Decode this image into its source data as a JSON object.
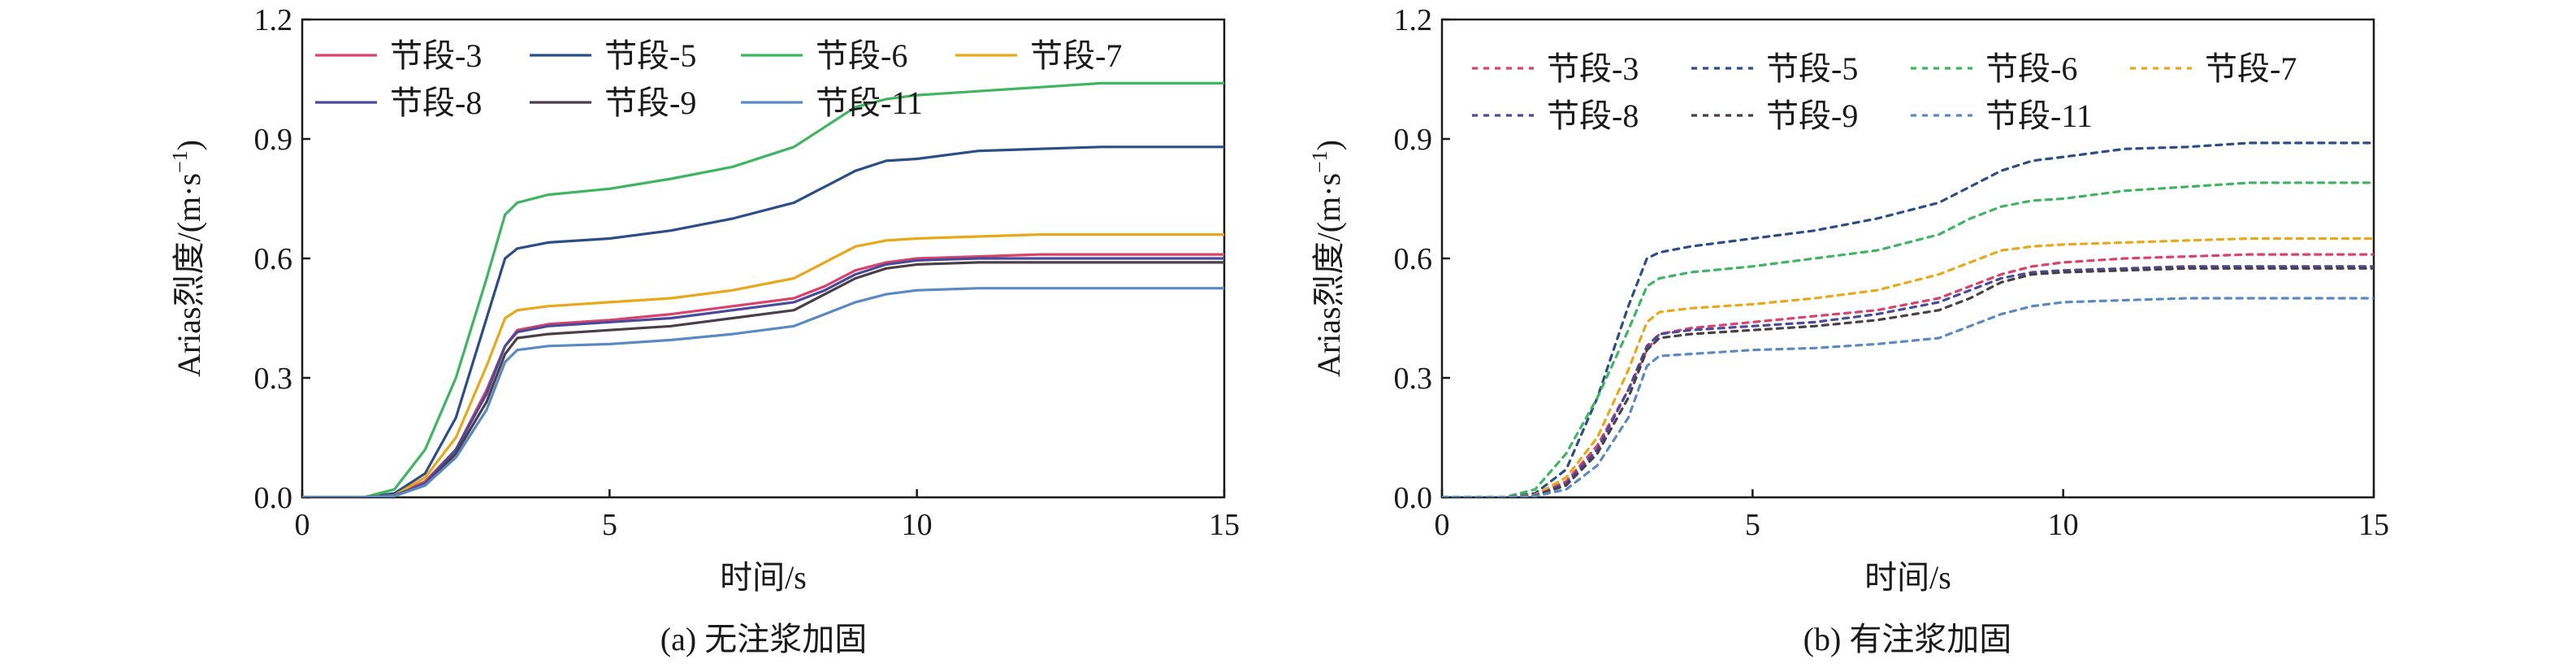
{
  "chart_data": [
    {
      "type": "line",
      "caption": "(a) 无注浆加固",
      "xlabel": "时间/s",
      "ylabel_main": "Arias烈度/(m·s",
      "ylabel_sup": "−1",
      "ylabel_end": ")",
      "xlim": [
        0,
        15
      ],
      "ylim": [
        0,
        1.2
      ],
      "xticks": [
        "0",
        "5",
        "10",
        "15"
      ],
      "yticks": [
        "0.0",
        "0.3",
        "0.6",
        "0.9",
        "1.2"
      ],
      "line_style": "solid",
      "legend_position": "top-left",
      "series": [
        {
          "name": "节段-3",
          "color": "#d9436b",
          "x": [
            0,
            1,
            1.5,
            2,
            2.5,
            3,
            3.3,
            3.5,
            4,
            5,
            6,
            7,
            8,
            8.5,
            9,
            9.5,
            10,
            11,
            12,
            13,
            14,
            15
          ],
          "y": [
            0,
            0,
            0.005,
            0.04,
            0.12,
            0.27,
            0.38,
            0.42,
            0.435,
            0.445,
            0.46,
            0.48,
            0.5,
            0.53,
            0.57,
            0.59,
            0.6,
            0.605,
            0.61,
            0.61,
            0.61,
            0.61
          ]
        },
        {
          "name": "节段-5",
          "color": "#2c4d86",
          "x": [
            0,
            1,
            1.5,
            2,
            2.5,
            3,
            3.3,
            3.5,
            4,
            5,
            6,
            7,
            8,
            8.5,
            9,
            9.5,
            10,
            11,
            12,
            13,
            14,
            15
          ],
          "y": [
            0,
            0,
            0.01,
            0.06,
            0.2,
            0.45,
            0.6,
            0.625,
            0.64,
            0.65,
            0.67,
            0.7,
            0.74,
            0.78,
            0.82,
            0.845,
            0.85,
            0.87,
            0.875,
            0.88,
            0.88,
            0.88
          ]
        },
        {
          "name": "节段-6",
          "color": "#3fb562",
          "x": [
            0,
            1,
            1.5,
            2,
            2.5,
            3,
            3.3,
            3.5,
            4,
            5,
            6,
            7,
            8,
            8.5,
            9,
            9.5,
            10,
            11,
            12,
            13,
            14,
            15
          ],
          "y": [
            0,
            0,
            0.02,
            0.12,
            0.3,
            0.55,
            0.71,
            0.74,
            0.76,
            0.775,
            0.8,
            0.83,
            0.88,
            0.93,
            0.98,
            1.0,
            1.01,
            1.02,
            1.03,
            1.04,
            1.04,
            1.04
          ]
        },
        {
          "name": "节段-7",
          "color": "#e8a819",
          "x": [
            0,
            1,
            1.5,
            2,
            2.5,
            3,
            3.3,
            3.5,
            4,
            5,
            6,
            7,
            8,
            8.5,
            9,
            9.5,
            10,
            11,
            12,
            13,
            14,
            15
          ],
          "y": [
            0,
            0,
            0.005,
            0.05,
            0.15,
            0.33,
            0.45,
            0.47,
            0.48,
            0.49,
            0.5,
            0.52,
            0.55,
            0.59,
            0.63,
            0.645,
            0.65,
            0.655,
            0.66,
            0.66,
            0.66,
            0.66
          ]
        },
        {
          "name": "节段-8",
          "color": "#4a4a9a",
          "x": [
            0,
            1,
            1.5,
            2,
            2.5,
            3,
            3.3,
            3.5,
            4,
            5,
            6,
            7,
            8,
            8.5,
            9,
            9.5,
            10,
            11,
            12,
            13,
            14,
            15
          ],
          "y": [
            0,
            0,
            0.004,
            0.035,
            0.12,
            0.26,
            0.38,
            0.415,
            0.43,
            0.44,
            0.45,
            0.47,
            0.49,
            0.52,
            0.56,
            0.585,
            0.595,
            0.6,
            0.6,
            0.6,
            0.6,
            0.6
          ]
        },
        {
          "name": "节段-9",
          "color": "#4a3f47",
          "x": [
            0,
            1,
            1.5,
            2,
            2.5,
            3,
            3.3,
            3.5,
            4,
            5,
            6,
            7,
            8,
            8.5,
            9,
            9.5,
            10,
            11,
            12,
            13,
            14,
            15
          ],
          "y": [
            0,
            0,
            0.004,
            0.03,
            0.11,
            0.24,
            0.36,
            0.4,
            0.41,
            0.42,
            0.43,
            0.45,
            0.47,
            0.51,
            0.55,
            0.575,
            0.585,
            0.59,
            0.59,
            0.59,
            0.59,
            0.59
          ]
        },
        {
          "name": "节段-11",
          "color": "#5b89c4",
          "x": [
            0,
            1,
            1.5,
            2,
            2.5,
            3,
            3.3,
            3.5,
            4,
            5,
            6,
            7,
            8,
            8.5,
            9,
            9.5,
            10,
            11,
            12,
            13,
            14,
            15
          ],
          "y": [
            0,
            0,
            0.003,
            0.03,
            0.1,
            0.22,
            0.34,
            0.37,
            0.38,
            0.385,
            0.395,
            0.41,
            0.43,
            0.46,
            0.49,
            0.51,
            0.52,
            0.525,
            0.525,
            0.525,
            0.525,
            0.525
          ]
        }
      ]
    },
    {
      "type": "line",
      "caption": "(b) 有注浆加固",
      "xlabel": "时间/s",
      "ylabel_main": "Arias烈度/(m·s",
      "ylabel_sup": "−1",
      "ylabel_end": ")",
      "xlim": [
        0,
        15
      ],
      "ylim": [
        0,
        1.2
      ],
      "xticks": [
        "0",
        "5",
        "10",
        "15"
      ],
      "yticks": [
        "0.0",
        "0.3",
        "0.6",
        "0.9",
        "1.2"
      ],
      "line_style": "dashed",
      "legend_position": "top-left",
      "series": [
        {
          "name": "节段-3",
          "color": "#d9436b",
          "x": [
            0,
            1,
            1.5,
            2,
            2.5,
            3,
            3.3,
            3.5,
            4,
            5,
            6,
            7,
            8,
            8.5,
            9,
            9.5,
            10,
            11,
            12,
            13,
            14,
            15
          ],
          "y": [
            0,
            0,
            0.005,
            0.04,
            0.13,
            0.27,
            0.37,
            0.41,
            0.425,
            0.44,
            0.455,
            0.47,
            0.5,
            0.53,
            0.56,
            0.58,
            0.59,
            0.6,
            0.605,
            0.61,
            0.61,
            0.61
          ]
        },
        {
          "name": "节段-5",
          "color": "#2c4d86",
          "x": [
            0,
            1,
            1.5,
            2,
            2.5,
            3,
            3.3,
            3.5,
            4,
            5,
            6,
            7,
            8,
            8.5,
            9,
            9.5,
            10,
            11,
            12,
            13,
            14,
            15
          ],
          "y": [
            0,
            0,
            0.01,
            0.07,
            0.25,
            0.48,
            0.6,
            0.615,
            0.63,
            0.65,
            0.67,
            0.7,
            0.74,
            0.78,
            0.82,
            0.845,
            0.855,
            0.875,
            0.88,
            0.89,
            0.89,
            0.89
          ]
        },
        {
          "name": "节段-6",
          "color": "#3fb562",
          "x": [
            0,
            1,
            1.5,
            2,
            2.5,
            3,
            3.3,
            3.5,
            4,
            5,
            6,
            7,
            8,
            8.5,
            9,
            9.5,
            10,
            11,
            12,
            13,
            14,
            15
          ],
          "y": [
            0,
            0,
            0.02,
            0.11,
            0.25,
            0.42,
            0.53,
            0.55,
            0.565,
            0.58,
            0.6,
            0.62,
            0.66,
            0.7,
            0.73,
            0.745,
            0.75,
            0.77,
            0.78,
            0.79,
            0.79,
            0.79
          ]
        },
        {
          "name": "节段-7",
          "color": "#e8a819",
          "x": [
            0,
            1,
            1.5,
            2,
            2.5,
            3,
            3.3,
            3.5,
            4,
            5,
            6,
            7,
            8,
            8.5,
            9,
            9.5,
            10,
            11,
            12,
            13,
            14,
            15
          ],
          "y": [
            0,
            0,
            0.006,
            0.05,
            0.15,
            0.32,
            0.44,
            0.465,
            0.475,
            0.485,
            0.5,
            0.52,
            0.56,
            0.59,
            0.62,
            0.63,
            0.635,
            0.64,
            0.645,
            0.65,
            0.65,
            0.65
          ]
        },
        {
          "name": "节段-8",
          "color": "#4a4a9a",
          "x": [
            0,
            1,
            1.5,
            2,
            2.5,
            3,
            3.3,
            3.5,
            4,
            5,
            6,
            7,
            8,
            8.5,
            9,
            9.5,
            10,
            11,
            12,
            13,
            14,
            15
          ],
          "y": [
            0,
            0,
            0.004,
            0.035,
            0.12,
            0.27,
            0.38,
            0.41,
            0.42,
            0.43,
            0.44,
            0.46,
            0.49,
            0.52,
            0.55,
            0.565,
            0.57,
            0.575,
            0.58,
            0.58,
            0.58,
            0.58
          ]
        },
        {
          "name": "节段-9",
          "color": "#4a3f47",
          "x": [
            0,
            1,
            1.5,
            2,
            2.5,
            3,
            3.3,
            3.5,
            4,
            5,
            6,
            7,
            8,
            8.5,
            9,
            9.5,
            10,
            11,
            12,
            13,
            14,
            15
          ],
          "y": [
            0,
            0,
            0.004,
            0.03,
            0.11,
            0.25,
            0.37,
            0.4,
            0.41,
            0.42,
            0.43,
            0.445,
            0.47,
            0.5,
            0.54,
            0.56,
            0.565,
            0.57,
            0.575,
            0.575,
            0.575,
            0.575
          ]
        },
        {
          "name": "节段-11",
          "color": "#5b89c4",
          "x": [
            0,
            1,
            1.5,
            2,
            2.5,
            3,
            3.3,
            3.5,
            4,
            5,
            6,
            7,
            8,
            8.5,
            9,
            9.5,
            10,
            11,
            12,
            13,
            14,
            15
          ],
          "y": [
            0,
            0,
            0.003,
            0.02,
            0.08,
            0.2,
            0.33,
            0.355,
            0.36,
            0.37,
            0.375,
            0.385,
            0.4,
            0.43,
            0.46,
            0.48,
            0.49,
            0.495,
            0.5,
            0.5,
            0.5,
            0.5
          ]
        }
      ]
    }
  ]
}
